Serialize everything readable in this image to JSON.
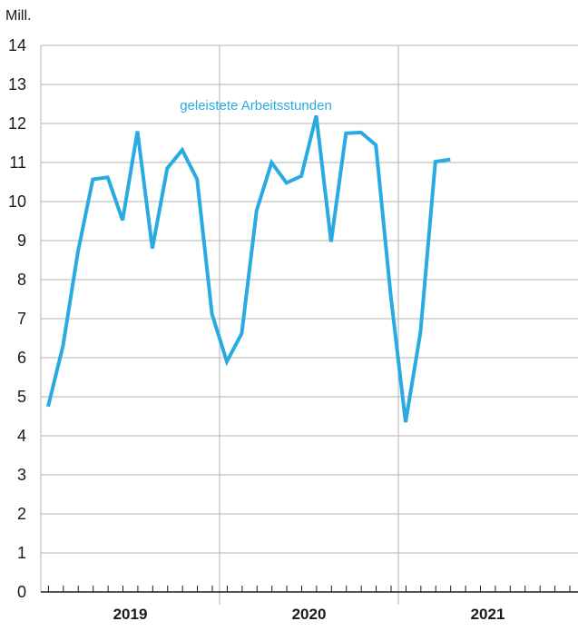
{
  "chart_data": {
    "type": "line",
    "unit_label": "Mill.",
    "ylim": [
      0,
      14
    ],
    "y_ticks": [
      0,
      1,
      2,
      3,
      4,
      5,
      6,
      7,
      8,
      9,
      10,
      11,
      12,
      13,
      14
    ],
    "x_period_labels": [
      "2019",
      "2020",
      "2021"
    ],
    "months_per_period": 12,
    "grid": true,
    "series": [
      {
        "name": "geleistete Arbeitsstunden",
        "color": "#29abe2",
        "x": [
          "2019-01",
          "2019-02",
          "2019-03",
          "2019-04",
          "2019-05",
          "2019-06",
          "2019-07",
          "2019-08",
          "2019-09",
          "2019-10",
          "2019-11",
          "2019-12",
          "2020-01",
          "2020-02",
          "2020-03",
          "2020-04",
          "2020-05",
          "2020-06",
          "2020-07",
          "2020-08",
          "2020-09",
          "2020-10",
          "2020-11",
          "2020-12",
          "2021-01",
          "2021-02",
          "2021-03",
          "2021-04"
        ],
        "values": [
          4.75,
          6.3,
          8.7,
          10.57,
          10.62,
          9.52,
          11.8,
          8.8,
          10.85,
          11.32,
          10.57,
          7.12,
          5.9,
          6.62,
          9.77,
          11.0,
          10.48,
          10.65,
          12.2,
          8.97,
          11.75,
          11.77,
          11.45,
          7.6,
          4.35,
          6.65,
          11.02,
          11.08
        ]
      }
    ]
  }
}
